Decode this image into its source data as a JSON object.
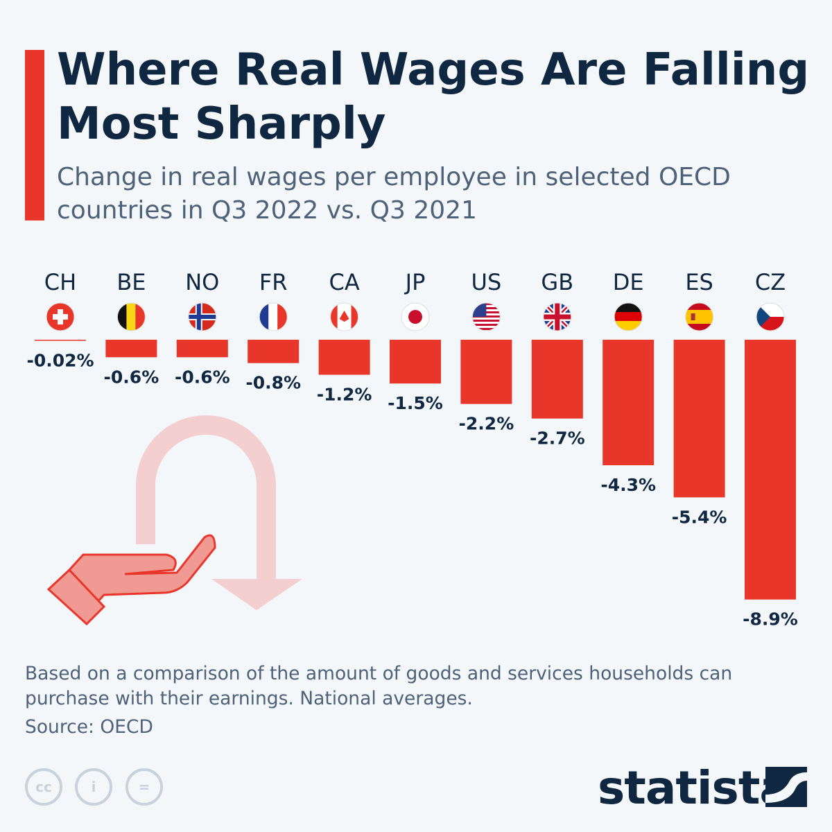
{
  "header": {
    "title": "Where Real Wages Are Falling Most Sharply",
    "subtitle": "Change in real wages per employee in selected OECD countries in Q3 2022 vs. Q3 2021"
  },
  "chart_data": {
    "type": "bar",
    "categories": [
      "CH",
      "BE",
      "NO",
      "FR",
      "CA",
      "JP",
      "US",
      "GB",
      "DE",
      "ES",
      "CZ"
    ],
    "values": [
      -0.02,
      -0.6,
      -0.6,
      -0.8,
      -1.2,
      -1.5,
      -2.2,
      -2.7,
      -4.3,
      -5.4,
      -8.9
    ],
    "data_labels": [
      "-0.02%",
      "-0.6%",
      "-0.6%",
      "-0.8%",
      "-1.2%",
      "-1.5%",
      "-2.2%",
      "-2.7%",
      "-4.3%",
      "-5.4%",
      "-8.9%"
    ],
    "unit": "%",
    "bar_color": "#e8362a",
    "grid": false
  },
  "footer": {
    "note": "Based on a comparison of the amount of goods and services households can purchase with their earnings. National averages.",
    "source": "Source: OECD",
    "brand": "statista",
    "license_icons": [
      "cc",
      "by",
      "nd"
    ]
  }
}
